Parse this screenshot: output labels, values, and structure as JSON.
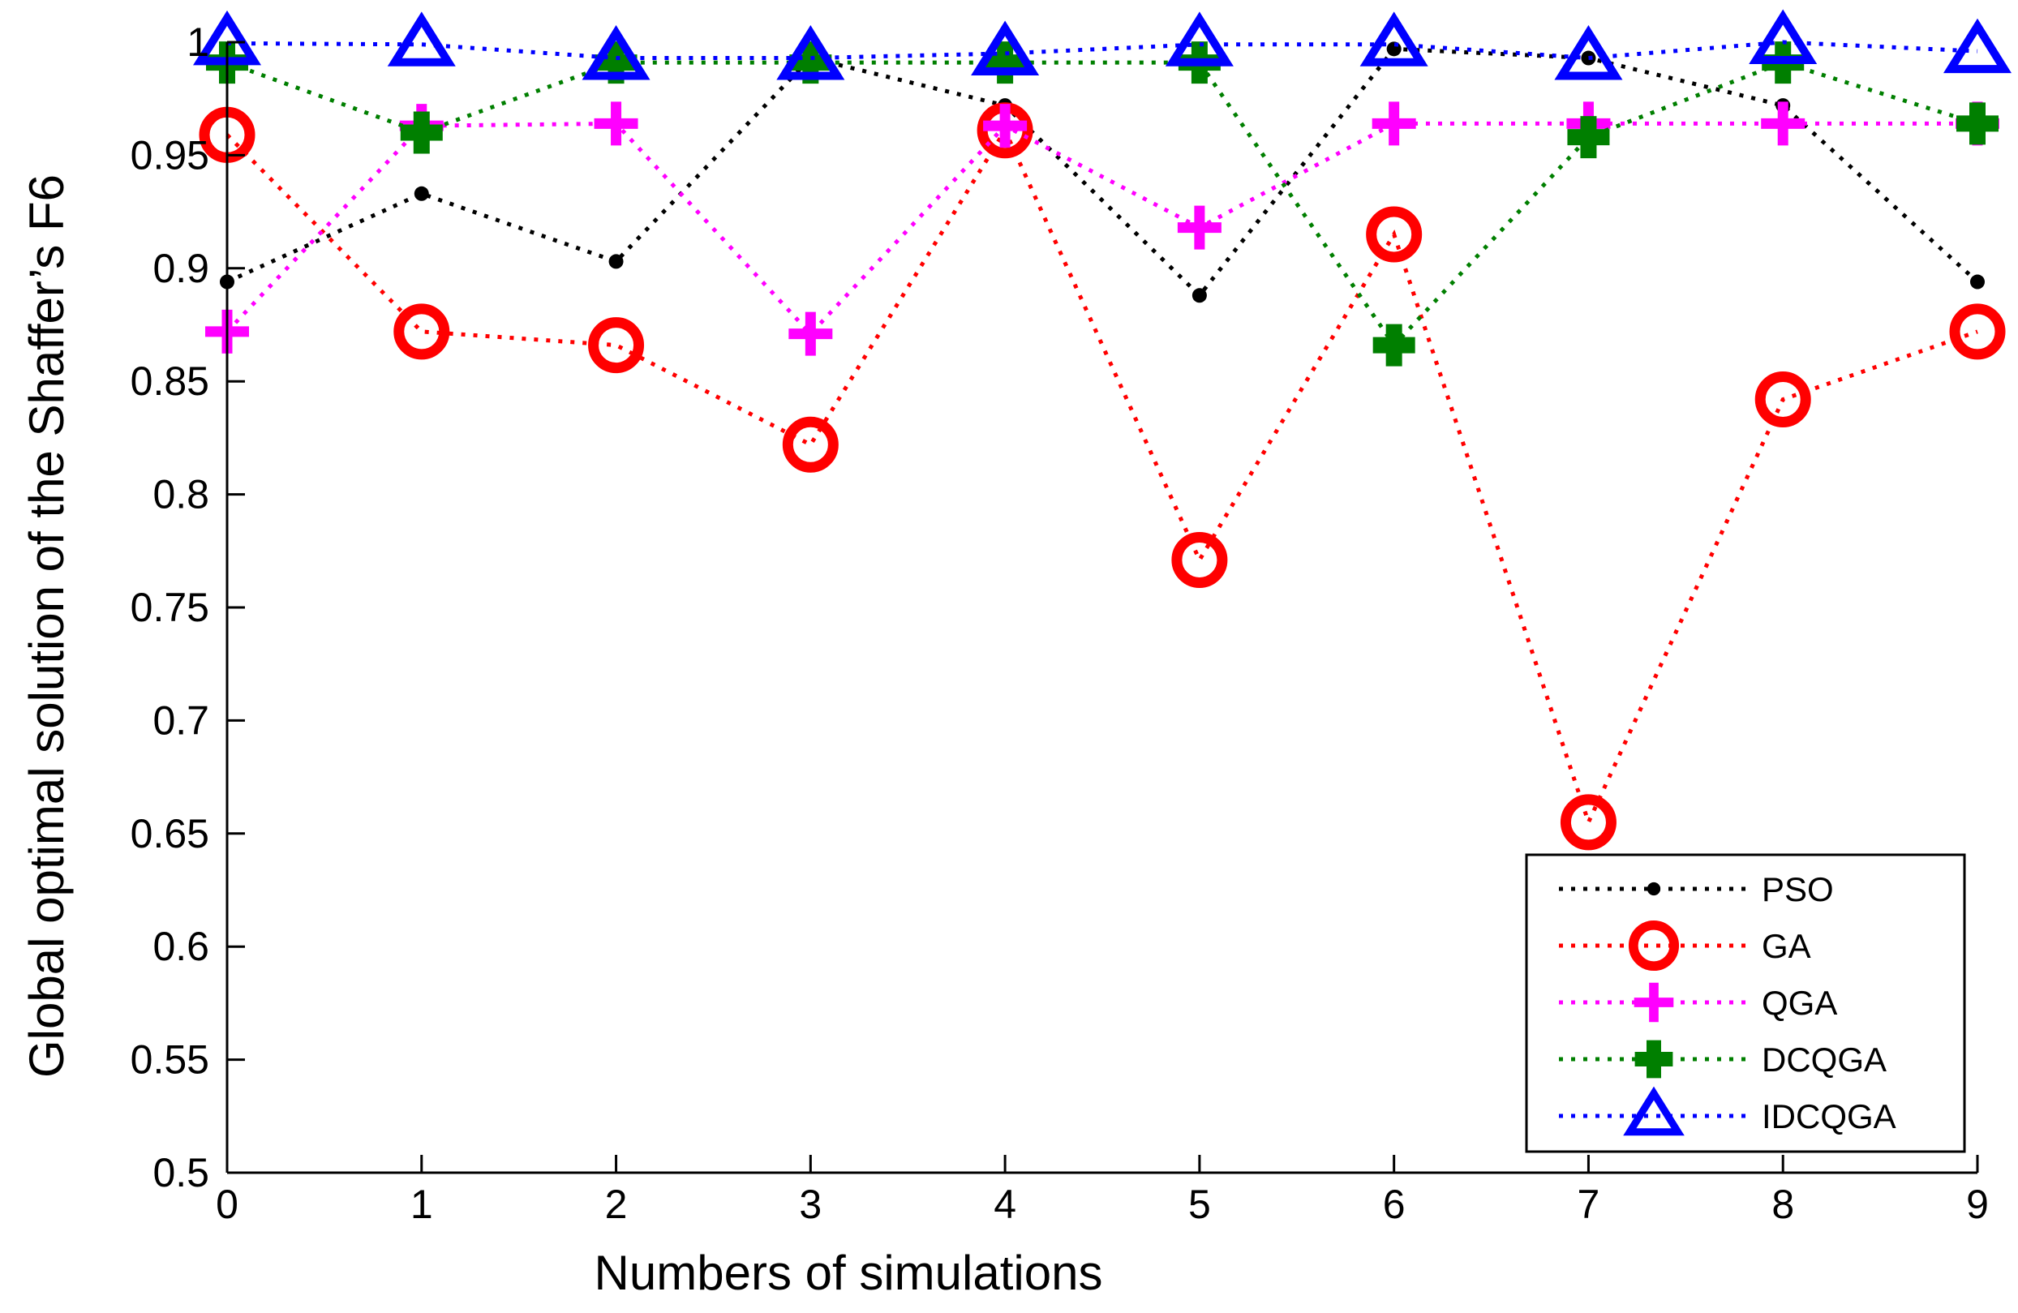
{
  "chart_data": {
    "type": "line",
    "title": "",
    "xlabel": "Numbers of simulations",
    "ylabel": "Global optimal solution of the Shaffer’s F6",
    "xlim": [
      0,
      9
    ],
    "ylim": [
      0.5,
      1
    ],
    "x": [
      0,
      1,
      2,
      3,
      4,
      5,
      6,
      7,
      8,
      9
    ],
    "x_tick_labels": [
      "0",
      "1",
      "2",
      "3",
      "4",
      "5",
      "6",
      "7",
      "8",
      "9"
    ],
    "y_ticks": [
      0.5,
      0.55,
      0.6,
      0.65,
      0.7,
      0.75,
      0.8,
      0.85,
      0.9,
      0.95,
      1
    ],
    "y_tick_labels": [
      "0.5",
      "0.55",
      "0.6",
      "0.65",
      "0.7",
      "0.75",
      "0.8",
      "0.85",
      "0.9",
      "0.95",
      "1"
    ],
    "legend_position": "bottom-right",
    "grid": false,
    "series": [
      {
        "name": "PSO",
        "color": "#000000",
        "marker": "dot",
        "values": [
          0.894,
          0.933,
          0.903,
          0.993,
          0.972,
          0.888,
          0.997,
          0.993,
          0.972,
          0.894
        ]
      },
      {
        "name": "GA",
        "color": "#ff0000",
        "marker": "circle",
        "values": [
          0.959,
          0.872,
          0.866,
          0.822,
          0.961,
          0.771,
          0.915,
          0.655,
          0.842,
          0.872
        ]
      },
      {
        "name": "QGA",
        "color": "#ff00ff",
        "marker": "plus",
        "values": [
          0.872,
          0.963,
          0.964,
          0.871,
          0.963,
          0.918,
          0.964,
          0.964,
          0.964,
          0.964
        ]
      },
      {
        "name": "DCQGA",
        "color": "#007f00",
        "marker": "filled-plus",
        "values": [
          0.991,
          0.96,
          0.991,
          0.991,
          0.991,
          0.991,
          0.866,
          0.958,
          0.991,
          0.964
        ]
      },
      {
        "name": "IDCQGA",
        "color": "#0000ff",
        "marker": "triangle",
        "values": [
          0.9995,
          0.999,
          0.993,
          0.993,
          0.995,
          0.999,
          0.999,
          0.993,
          1.0,
          0.996
        ]
      }
    ]
  }
}
